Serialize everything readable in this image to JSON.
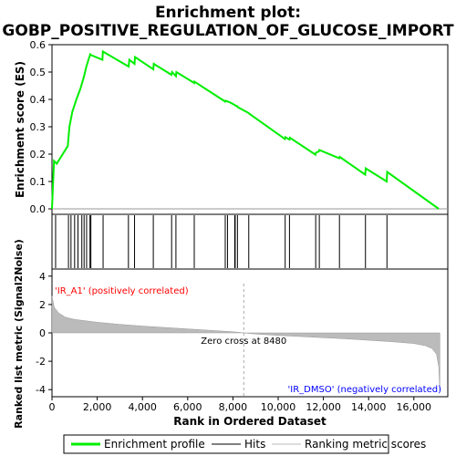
{
  "chart_data": {
    "type": "line",
    "title": "Enrichment plot:",
    "subtitle": "GOBP_POSITIVE_REGULATION_OF_GLUCOSE_IMPORT",
    "es_panel": {
      "ylabel": "Enrichment score (ES)",
      "ylim": [
        -0.02,
        0.6
      ],
      "yticks": [
        "0.0",
        "0.1",
        "0.2",
        "0.3",
        "0.4",
        "0.5",
        "0.6"
      ],
      "series": [
        {
          "name": "Enrichment profile",
          "color": "#00ee00",
          "x": [
            0,
            90,
            210,
            700,
            770,
            900,
            1080,
            1260,
            1420,
            1520,
            1690,
            1730,
            2230,
            2250,
            3390,
            3420,
            3650,
            3670,
            4480,
            4500,
            5280,
            5310,
            5480,
            5500,
            6290,
            6300,
            7660,
            7680,
            7850,
            8070,
            8100,
            8200,
            8210,
            8700,
            8720,
            10300,
            10320,
            10500,
            10520,
            11650,
            11670,
            11800,
            11820,
            12700,
            12720,
            13850,
            13870,
            14800,
            14820,
            17100
          ],
          "y": [
            0.0,
            0.175,
            0.165,
            0.23,
            0.3,
            0.355,
            0.4,
            0.44,
            0.485,
            0.52,
            0.565,
            0.562,
            0.545,
            0.575,
            0.52,
            0.545,
            0.53,
            0.555,
            0.51,
            0.53,
            0.49,
            0.5,
            0.485,
            0.5,
            0.46,
            0.465,
            0.392,
            0.395,
            0.39,
            0.38,
            0.378,
            0.375,
            0.372,
            0.35,
            0.348,
            0.255,
            0.262,
            0.253,
            0.26,
            0.198,
            0.205,
            0.21,
            0.215,
            0.185,
            0.19,
            0.125,
            0.148,
            0.1,
            0.135,
            0.0
          ]
        }
      ]
    },
    "hits": [
      160,
      730,
      840,
      1000,
      1150,
      1320,
      1420,
      1530,
      1680,
      1720,
      2260,
      3380,
      3650,
      4480,
      5290,
      5480,
      6290,
      7660,
      7760,
      8080,
      8100,
      8200,
      8700,
      10310,
      10500,
      11660,
      11820,
      12710,
      13860,
      14810
    ],
    "metric_panel": {
      "ylabel": "Ranked list metric (Signal2Noise)",
      "xlabel": "Rank in Ordered Dataset",
      "ylim": [
        -4.5,
        4.5
      ],
      "yticks": [
        "4",
        "2",
        "0",
        "-2",
        "-4"
      ],
      "xlim": [
        0,
        17500
      ],
      "xticks": [
        "0",
        "2,000",
        "4,000",
        "6,000",
        "8,000",
        "10,000",
        "12,000",
        "14,000",
        "16,000"
      ],
      "profile_x": [
        0,
        100,
        300,
        600,
        1000,
        2000,
        3000,
        4000,
        5000,
        6000,
        7000,
        8000,
        8480,
        9000,
        10000,
        11000,
        12000,
        13000,
        14000,
        15000,
        16000,
        16500,
        16800,
        17000,
        17100,
        17150
      ],
      "profile_y": [
        2.6,
        1.8,
        1.4,
        1.1,
        0.95,
        0.75,
        0.6,
        0.48,
        0.38,
        0.28,
        0.18,
        0.08,
        0.0,
        -0.08,
        -0.18,
        -0.26,
        -0.34,
        -0.42,
        -0.52,
        -0.62,
        -0.75,
        -0.9,
        -1.1,
        -1.5,
        -2.4,
        -4.2
      ],
      "zero_cross_label": "Zero cross at 8480",
      "zero_cross": 8480,
      "pos_label": "'IR_A1' (positively correlated)",
      "neg_label": "'IR_DMSO' (negatively correlated)",
      "pos_color": "#ff0000",
      "neg_color": "#0000ff"
    },
    "legend": {
      "items": [
        "Enrichment profile",
        "Hits",
        "Ranking metric scores"
      ],
      "placement": "bottom"
    }
  }
}
